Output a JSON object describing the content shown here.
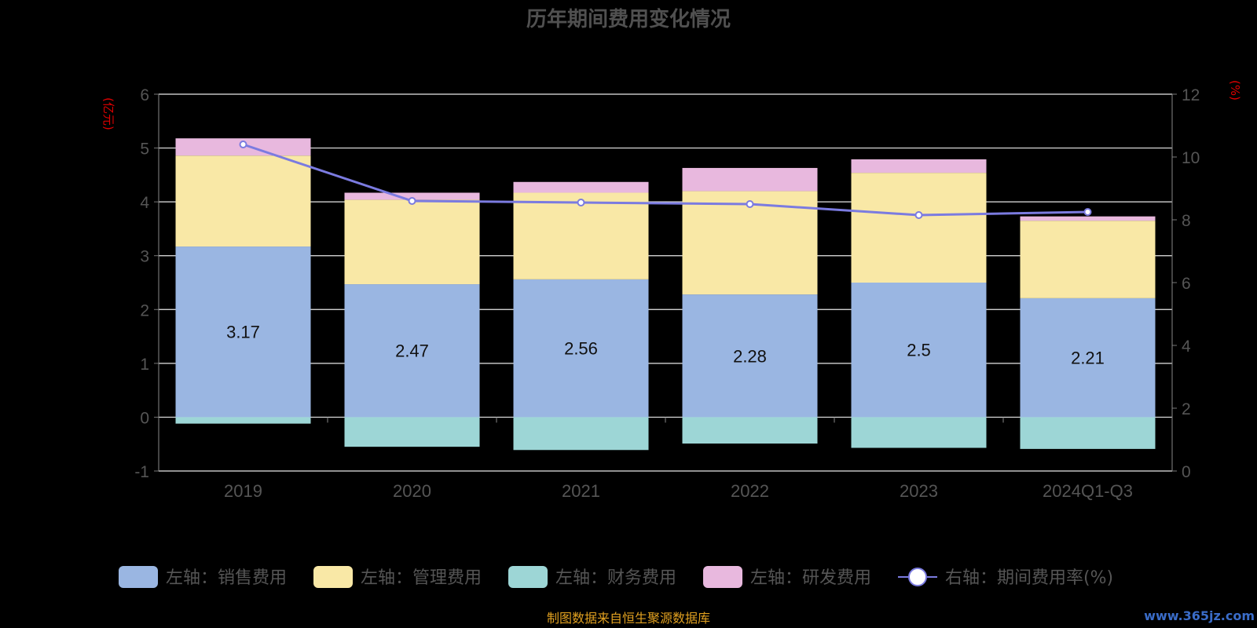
{
  "chart_data": {
    "type": "bar",
    "title": "历年期间费用变化情况",
    "left_axis_unit": "(亿元)",
    "right_axis_unit": "(%)",
    "categories": [
      "2019",
      "2020",
      "2021",
      "2022",
      "2023",
      "2024Q1-Q3"
    ],
    "left_ylim": [
      -1,
      6
    ],
    "left_ticks": [
      "6",
      "5",
      "4",
      "3",
      "2",
      "1",
      "0",
      "-1"
    ],
    "right_ylim": [
      0,
      12
    ],
    "right_ticks": [
      "12",
      "10",
      "8",
      "6",
      "4",
      "2",
      "0"
    ],
    "grid": true,
    "stacked": true,
    "series": [
      {
        "name": "左轴：销售费用",
        "axis": "left",
        "type": "bar",
        "color": "#9ab6e2",
        "values": [
          3.17,
          2.47,
          2.56,
          2.28,
          2.5,
          2.21
        ],
        "labels": [
          "3.17",
          "2.47",
          "2.56",
          "2.28",
          "2.5",
          "2.21"
        ]
      },
      {
        "name": "左轴：管理费用",
        "axis": "left",
        "type": "bar",
        "color": "#f9e8a6",
        "values": [
          1.69,
          1.57,
          1.61,
          1.92,
          2.04,
          1.44
        ]
      },
      {
        "name": "左轴：财务费用",
        "axis": "left",
        "type": "bar",
        "color": "#9dd6d6",
        "values": [
          -0.12,
          -0.55,
          -0.61,
          -0.49,
          -0.57,
          -0.59
        ]
      },
      {
        "name": "左轴：研发费用",
        "axis": "left",
        "type": "bar",
        "color": "#e8b8de",
        "values": [
          0.32,
          0.13,
          0.2,
          0.43,
          0.25,
          0.08
        ]
      },
      {
        "name": "右轴：期间费用率(%)",
        "axis": "right",
        "type": "line",
        "color": "#7b7be0",
        "values": [
          10.4,
          8.6,
          8.55,
          8.5,
          8.15,
          8.25
        ]
      }
    ],
    "legend_position": "bottom"
  },
  "footer": {
    "source": "制图数据来自恒生聚源数据库",
    "watermark": "www.365jz.com"
  }
}
